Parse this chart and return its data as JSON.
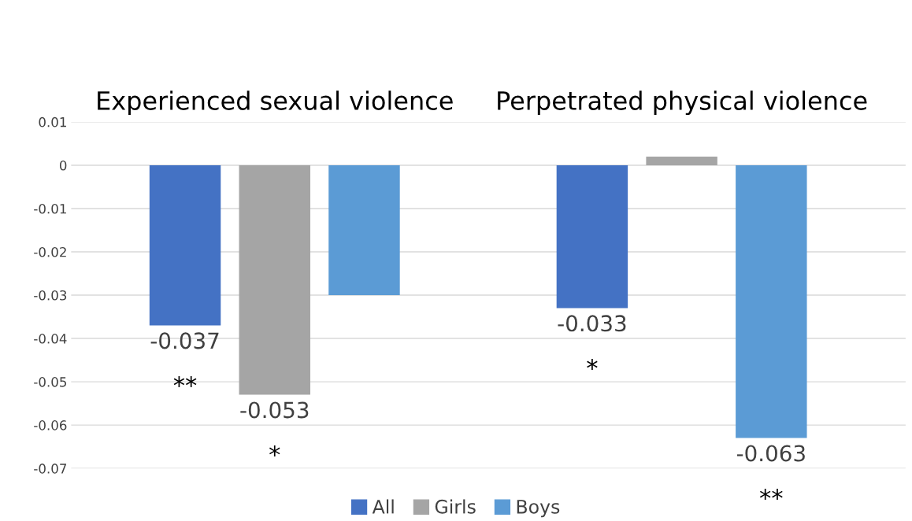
{
  "chart_data": {
    "type": "bar",
    "categories": [
      "Experienced sexual violence",
      "Perpetrated physical violence"
    ],
    "series": [
      {
        "name": "All",
        "color": "#4472c4",
        "values": [
          -0.037,
          -0.033
        ],
        "value_labels": [
          "-0.037",
          "-0.033"
        ]
      },
      {
        "name": "Girls",
        "color": "#a5a5a5",
        "values": [
          -0.053,
          0.002
        ],
        "value_labels": [
          "-0.053",
          null
        ]
      },
      {
        "name": "Boys",
        "color": "#5b9bd5",
        "values": [
          -0.03,
          -0.063
        ],
        "value_labels": [
          null,
          "-0.063"
        ]
      }
    ],
    "annotations": [
      "**",
      "*",
      "*",
      "**"
    ],
    "ylim": [
      -0.07,
      0.01
    ],
    "yticks": [
      0.01,
      0,
      -0.01,
      -0.02,
      -0.03,
      -0.04,
      -0.05,
      -0.06,
      -0.07
    ],
    "grid": "y",
    "legend": "bottom"
  }
}
